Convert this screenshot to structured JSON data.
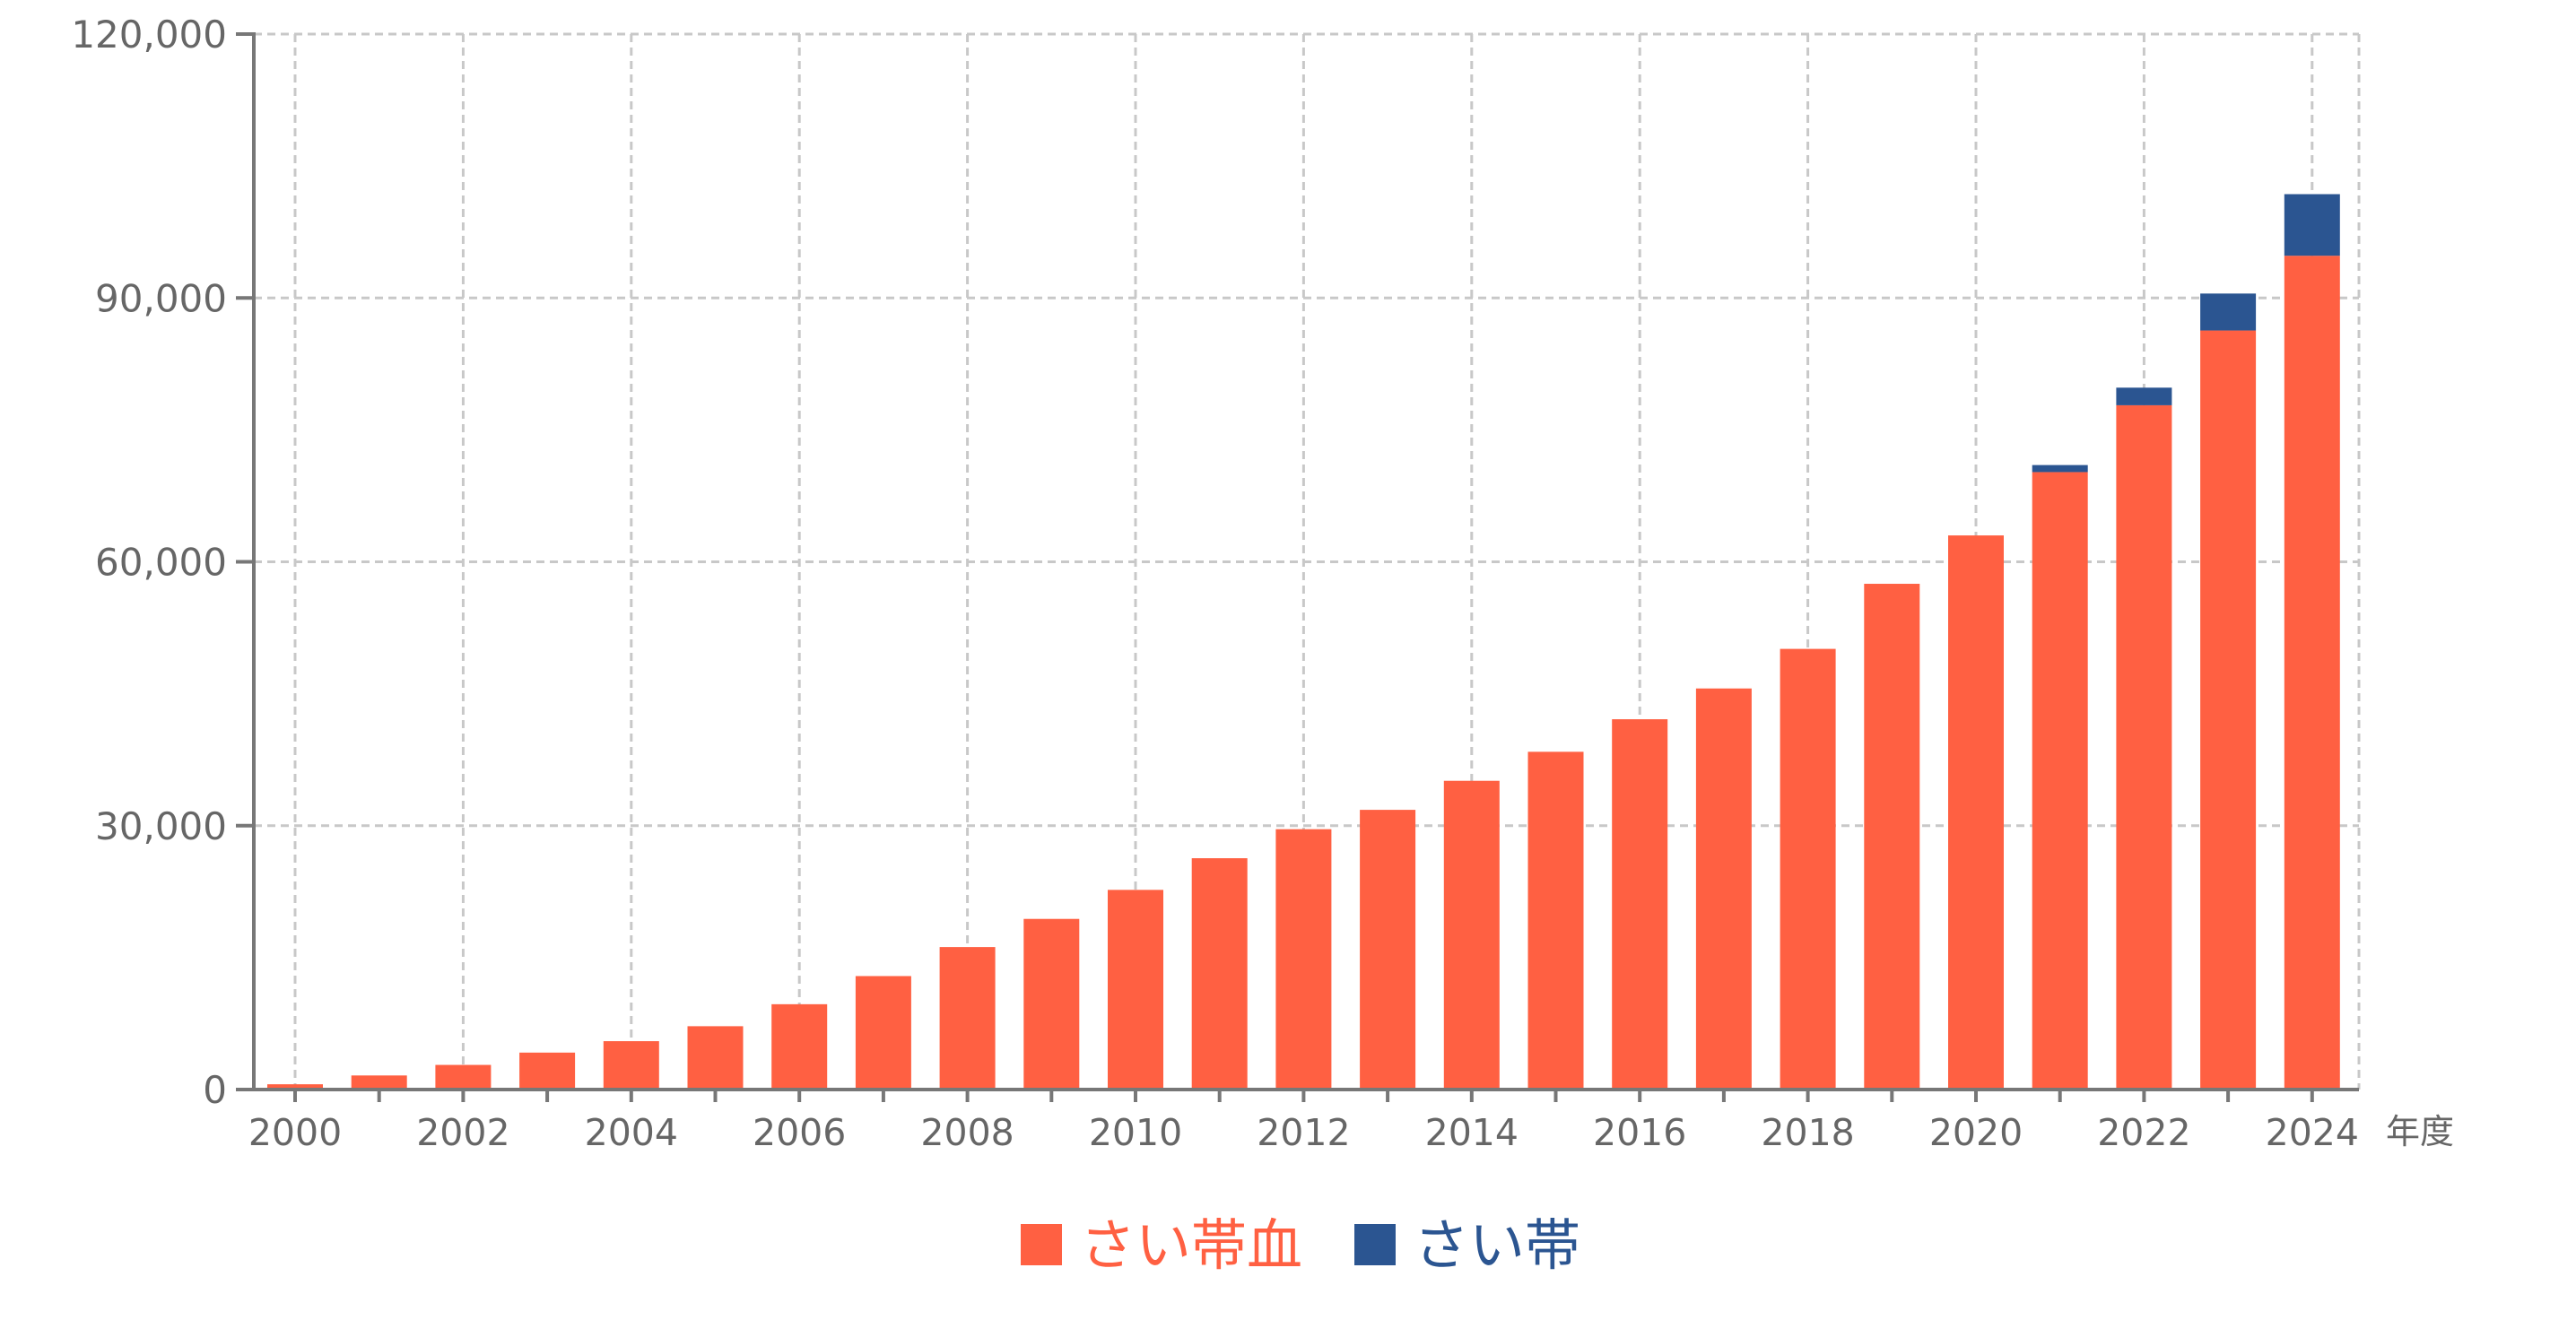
{
  "chart_data": {
    "type": "bar",
    "stacked": true,
    "title": "",
    "xlabel": "年度",
    "ylabel": "",
    "categories": [
      "2000",
      "2001",
      "2002",
      "2003",
      "2004",
      "2005",
      "2006",
      "2007",
      "2008",
      "2009",
      "2010",
      "2011",
      "2012",
      "2013",
      "2014",
      "2015",
      "2016",
      "2017",
      "2018",
      "2019",
      "2020",
      "2021",
      "2022",
      "2023",
      "2024"
    ],
    "x_tick_labels": [
      "2000",
      "2002",
      "2004",
      "2006",
      "2008",
      "2010",
      "2012",
      "2014",
      "2016",
      "2018",
      "2020",
      "2022",
      "2024"
    ],
    "series": [
      {
        "name": "さい帯血",
        "color": "#ff6042",
        "values": [
          600,
          1600,
          2800,
          4200,
          5500,
          7200,
          9700,
          12900,
          16200,
          19400,
          22700,
          26300,
          29600,
          31800,
          35100,
          38400,
          42100,
          45600,
          50100,
          57500,
          63000,
          70200,
          77800,
          86300,
          94800
        ]
      },
      {
        "name": "さい帯",
        "color": "#2b5591",
        "values": [
          0,
          0,
          0,
          0,
          0,
          0,
          0,
          0,
          0,
          0,
          0,
          0,
          0,
          0,
          0,
          0,
          0,
          0,
          0,
          0,
          0,
          800,
          2000,
          4200,
          7000
        ]
      }
    ],
    "ylim": [
      0,
      120000
    ],
    "y_ticks": [
      0,
      30000,
      60000,
      90000,
      120000
    ],
    "y_tick_labels": [
      "0",
      "30,000",
      "60,000",
      "90,000",
      "120,000"
    ],
    "grid": true,
    "legend_position": "bottom-center"
  }
}
